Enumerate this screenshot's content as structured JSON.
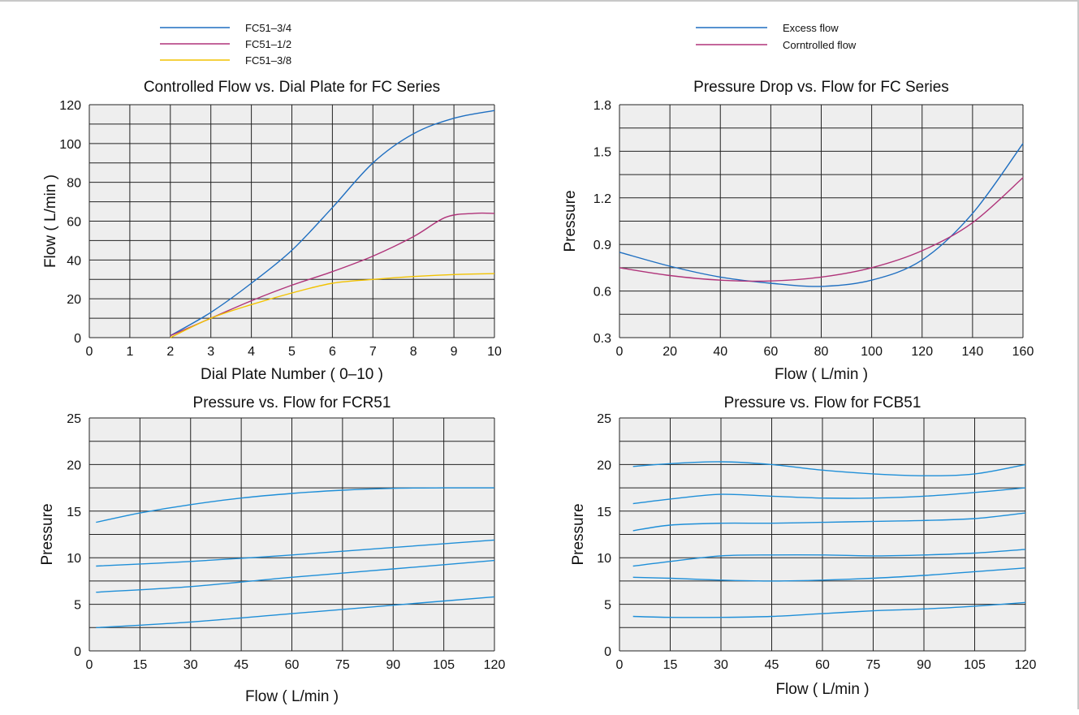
{
  "chart_data": [
    {
      "id": "c1",
      "type": "line",
      "title": "Controlled Flow vs. Dial Plate for FC Series",
      "xlabel": "Dial Plate Number ( 0–10 )",
      "ylabel": "Flow ( L/min )",
      "xlim": [
        0,
        10
      ],
      "ylim": [
        0,
        120
      ],
      "xticks": [
        0,
        1,
        2,
        3,
        4,
        5,
        6,
        7,
        8,
        9,
        10
      ],
      "yticks": [
        0,
        20,
        40,
        60,
        80,
        100,
        120
      ],
      "x_grid": [
        0,
        1,
        2,
        3,
        4,
        5,
        6,
        7,
        8,
        9,
        10
      ],
      "y_grid": [
        0,
        10,
        20,
        30,
        40,
        50,
        60,
        70,
        80,
        90,
        100,
        110,
        120
      ],
      "legend": "top-left",
      "series": [
        {
          "name": "FC51–3/4",
          "color": "#1f6fc1",
          "points": [
            [
              2,
              1
            ],
            [
              3,
              13
            ],
            [
              4,
              28
            ],
            [
              5,
              45
            ],
            [
              6,
              67
            ],
            [
              7,
              90
            ],
            [
              8,
              105
            ],
            [
              9,
              113
            ],
            [
              10,
              117
            ]
          ]
        },
        {
          "name": "FC51–1/2",
          "color": "#b0347a",
          "points": [
            [
              2,
              1
            ],
            [
              3,
              10
            ],
            [
              4,
              19
            ],
            [
              5,
              27
            ],
            [
              6,
              34
            ],
            [
              7,
              42
            ],
            [
              8,
              52
            ],
            [
              8.8,
              62
            ],
            [
              9.5,
              64
            ],
            [
              10,
              64
            ]
          ]
        },
        {
          "name": "FC51–3/8",
          "color": "#f2c200",
          "points": [
            [
              2,
              0
            ],
            [
              3,
              10
            ],
            [
              4,
              17
            ],
            [
              5,
              23
            ],
            [
              6,
              28
            ],
            [
              7,
              30
            ],
            [
              8,
              31.5
            ],
            [
              9,
              32.5
            ],
            [
              10,
              33
            ]
          ]
        }
      ]
    },
    {
      "id": "c2",
      "type": "line",
      "title": "Pressure Drop vs. Flow for FC Series",
      "xlabel": "Flow ( L/min )",
      "ylabel": "Pressure",
      "xlim": [
        0,
        160
      ],
      "ylim": [
        0.3,
        1.8
      ],
      "xticks": [
        0,
        20,
        40,
        60,
        80,
        100,
        120,
        140,
        160
      ],
      "yticks": [
        0.3,
        0.6,
        0.9,
        1.2,
        1.5,
        1.8
      ],
      "ytick_labels": [
        "0.3",
        "0.6",
        "0.9",
        "1.2",
        "1.5",
        "1.8"
      ],
      "x_grid": [
        0,
        20,
        40,
        60,
        80,
        100,
        120,
        140,
        160
      ],
      "y_grid": [
        0.3,
        0.45,
        0.6,
        0.75,
        0.9,
        1.05,
        1.2,
        1.35,
        1.5,
        1.65,
        1.8
      ],
      "legend": "top-center",
      "series": [
        {
          "name": "Excess flow",
          "color": "#1f6fc1",
          "points": [
            [
              0,
              0.85
            ],
            [
              20,
              0.76
            ],
            [
              40,
              0.69
            ],
            [
              60,
              0.65
            ],
            [
              80,
              0.63
            ],
            [
              100,
              0.67
            ],
            [
              120,
              0.8
            ],
            [
              140,
              1.1
            ],
            [
              160,
              1.55
            ]
          ]
        },
        {
          "name": "Corntrolled flow",
          "color": "#b0347a",
          "points": [
            [
              0,
              0.75
            ],
            [
              20,
              0.7
            ],
            [
              40,
              0.67
            ],
            [
              60,
              0.665
            ],
            [
              80,
              0.69
            ],
            [
              100,
              0.75
            ],
            [
              120,
              0.86
            ],
            [
              140,
              1.04
            ],
            [
              160,
              1.33
            ]
          ]
        }
      ]
    },
    {
      "id": "c3",
      "type": "line",
      "title": "Pressure vs. Flow for FCR51",
      "xlabel": "Flow ( L/min )",
      "ylabel": "Pressure",
      "xlim": [
        0,
        120
      ],
      "ylim": [
        0,
        25
      ],
      "xticks": [
        0,
        15,
        30,
        45,
        60,
        75,
        90,
        105,
        120
      ],
      "yticks": [
        0,
        5,
        10,
        15,
        20,
        25
      ],
      "x_grid": [
        0,
        15,
        30,
        45,
        60,
        75,
        90,
        105,
        120
      ],
      "y_grid": [
        0,
        2.5,
        5,
        7.5,
        10,
        12.5,
        15,
        17.5,
        20,
        22.5,
        25
      ],
      "series": [
        {
          "color": "#1f8fd8",
          "points": [
            [
              2,
              13.8
            ],
            [
              15,
              14.8
            ],
            [
              30,
              15.7
            ],
            [
              45,
              16.4
            ],
            [
              60,
              16.9
            ],
            [
              75,
              17.25
            ],
            [
              90,
              17.45
            ],
            [
              105,
              17.5
            ],
            [
              120,
              17.5
            ]
          ]
        },
        {
          "color": "#1f8fd8",
          "points": [
            [
              2,
              9.1
            ],
            [
              30,
              9.6
            ],
            [
              60,
              10.3
            ],
            [
              90,
              11.1
            ],
            [
              120,
              11.9
            ]
          ]
        },
        {
          "color": "#1f8fd8",
          "points": [
            [
              2,
              6.3
            ],
            [
              30,
              6.9
            ],
            [
              60,
              7.9
            ],
            [
              90,
              8.8
            ],
            [
              120,
              9.7
            ]
          ]
        },
        {
          "color": "#1f8fd8",
          "points": [
            [
              2,
              2.5
            ],
            [
              30,
              3.1
            ],
            [
              60,
              4.0
            ],
            [
              90,
              4.9
            ],
            [
              120,
              5.8
            ]
          ]
        }
      ]
    },
    {
      "id": "c4",
      "type": "line",
      "title": "Pressure vs. Flow for FCB51",
      "xlabel": "Flow ( L/min )",
      "ylabel": "Pressure",
      "xlim": [
        0,
        120
      ],
      "ylim": [
        0,
        25
      ],
      "xticks": [
        0,
        15,
        30,
        45,
        60,
        75,
        90,
        105,
        120
      ],
      "yticks": [
        0,
        5,
        10,
        15,
        20,
        25
      ],
      "x_grid": [
        0,
        15,
        30,
        45,
        60,
        75,
        90,
        105,
        120
      ],
      "y_grid": [
        0,
        2.5,
        5,
        7.5,
        10,
        12.5,
        15,
        17.5,
        20,
        22.5,
        25
      ],
      "series": [
        {
          "color": "#1f8fd8",
          "points": [
            [
              4,
              19.8
            ],
            [
              15,
              20.1
            ],
            [
              30,
              20.3
            ],
            [
              45,
              20.0
            ],
            [
              60,
              19.4
            ],
            [
              75,
              19.0
            ],
            [
              90,
              18.8
            ],
            [
              105,
              19.0
            ],
            [
              120,
              20.0
            ]
          ]
        },
        {
          "color": "#1f8fd8",
          "points": [
            [
              4,
              15.8
            ],
            [
              15,
              16.3
            ],
            [
              30,
              16.8
            ],
            [
              45,
              16.6
            ],
            [
              60,
              16.4
            ],
            [
              75,
              16.4
            ],
            [
              90,
              16.6
            ],
            [
              105,
              17.0
            ],
            [
              120,
              17.5
            ]
          ]
        },
        {
          "color": "#1f8fd8",
          "points": [
            [
              4,
              12.9
            ],
            [
              15,
              13.5
            ],
            [
              30,
              13.7
            ],
            [
              45,
              13.7
            ],
            [
              60,
              13.8
            ],
            [
              75,
              13.9
            ],
            [
              90,
              14.0
            ],
            [
              105,
              14.2
            ],
            [
              120,
              14.8
            ]
          ]
        },
        {
          "color": "#1f8fd8",
          "points": [
            [
              4,
              9.1
            ],
            [
              15,
              9.6
            ],
            [
              30,
              10.2
            ],
            [
              45,
              10.3
            ],
            [
              60,
              10.3
            ],
            [
              75,
              10.2
            ],
            [
              90,
              10.3
            ],
            [
              105,
              10.5
            ],
            [
              120,
              10.9
            ]
          ]
        },
        {
          "color": "#1f8fd8",
          "points": [
            [
              4,
              7.9
            ],
            [
              15,
              7.8
            ],
            [
              30,
              7.6
            ],
            [
              45,
              7.5
            ],
            [
              60,
              7.6
            ],
            [
              75,
              7.8
            ],
            [
              90,
              8.1
            ],
            [
              105,
              8.5
            ],
            [
              120,
              8.9
            ]
          ]
        },
        {
          "color": "#1f8fd8",
          "points": [
            [
              4,
              3.7
            ],
            [
              15,
              3.6
            ],
            [
              30,
              3.6
            ],
            [
              45,
              3.7
            ],
            [
              60,
              4.0
            ],
            [
              75,
              4.3
            ],
            [
              90,
              4.5
            ],
            [
              105,
              4.8
            ],
            [
              120,
              5.2
            ]
          ]
        }
      ]
    }
  ]
}
